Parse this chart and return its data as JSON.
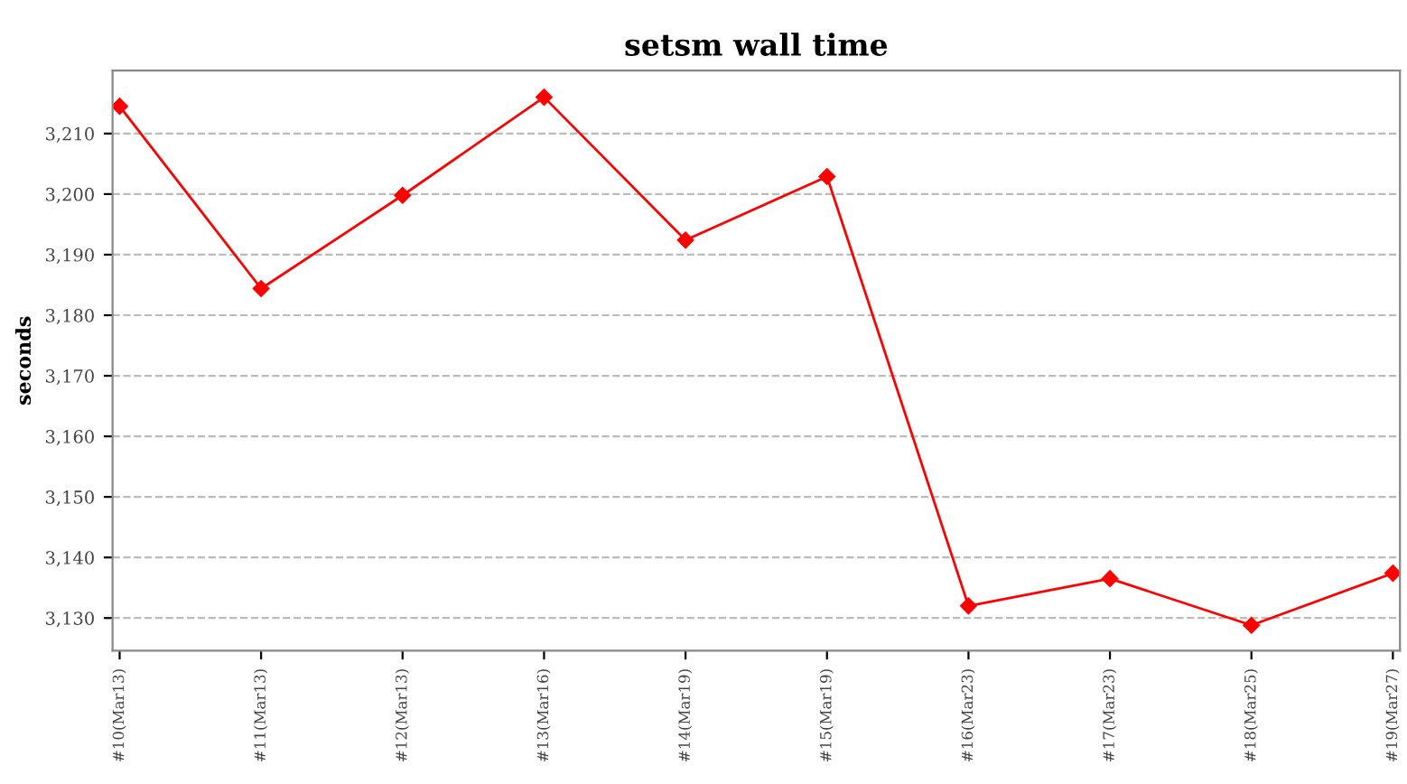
{
  "chart_data": {
    "type": "line",
    "title": "setsm wall time",
    "ylabel": "seconds",
    "categories": [
      "#10(Mar13)",
      "#11(Mar13)",
      "#12(Mar13)",
      "#13(Mar16)",
      "#14(Mar19)",
      "#15(Mar19)",
      "#16(Mar23)",
      "#17(Mar23)",
      "#18(Mar25)",
      "#19(Mar27)"
    ],
    "series": [
      {
        "color": "#ff0000",
        "values": [
          3214.5,
          3184.4,
          3199.8,
          3216,
          3192.4,
          3202.9,
          3132,
          3136.5,
          3128.8,
          3137.4
        ]
      }
    ],
    "ylim": [
      3124.6,
      3220.4
    ],
    "yticks": [
      {
        "value": 3130,
        "label": "3,130"
      },
      {
        "value": 3140,
        "label": "3,140"
      },
      {
        "value": 3150,
        "label": "3,150"
      },
      {
        "value": 3160,
        "label": "3,160"
      },
      {
        "value": 3170,
        "label": "3,170"
      },
      {
        "value": 3180,
        "label": "3,180"
      },
      {
        "value": 3190,
        "label": "3,190"
      },
      {
        "value": 3200,
        "label": "3,200"
      },
      {
        "value": 3210,
        "label": "3,210"
      }
    ],
    "grid": "y",
    "marker": "diamond",
    "line_style": "solid"
  }
}
